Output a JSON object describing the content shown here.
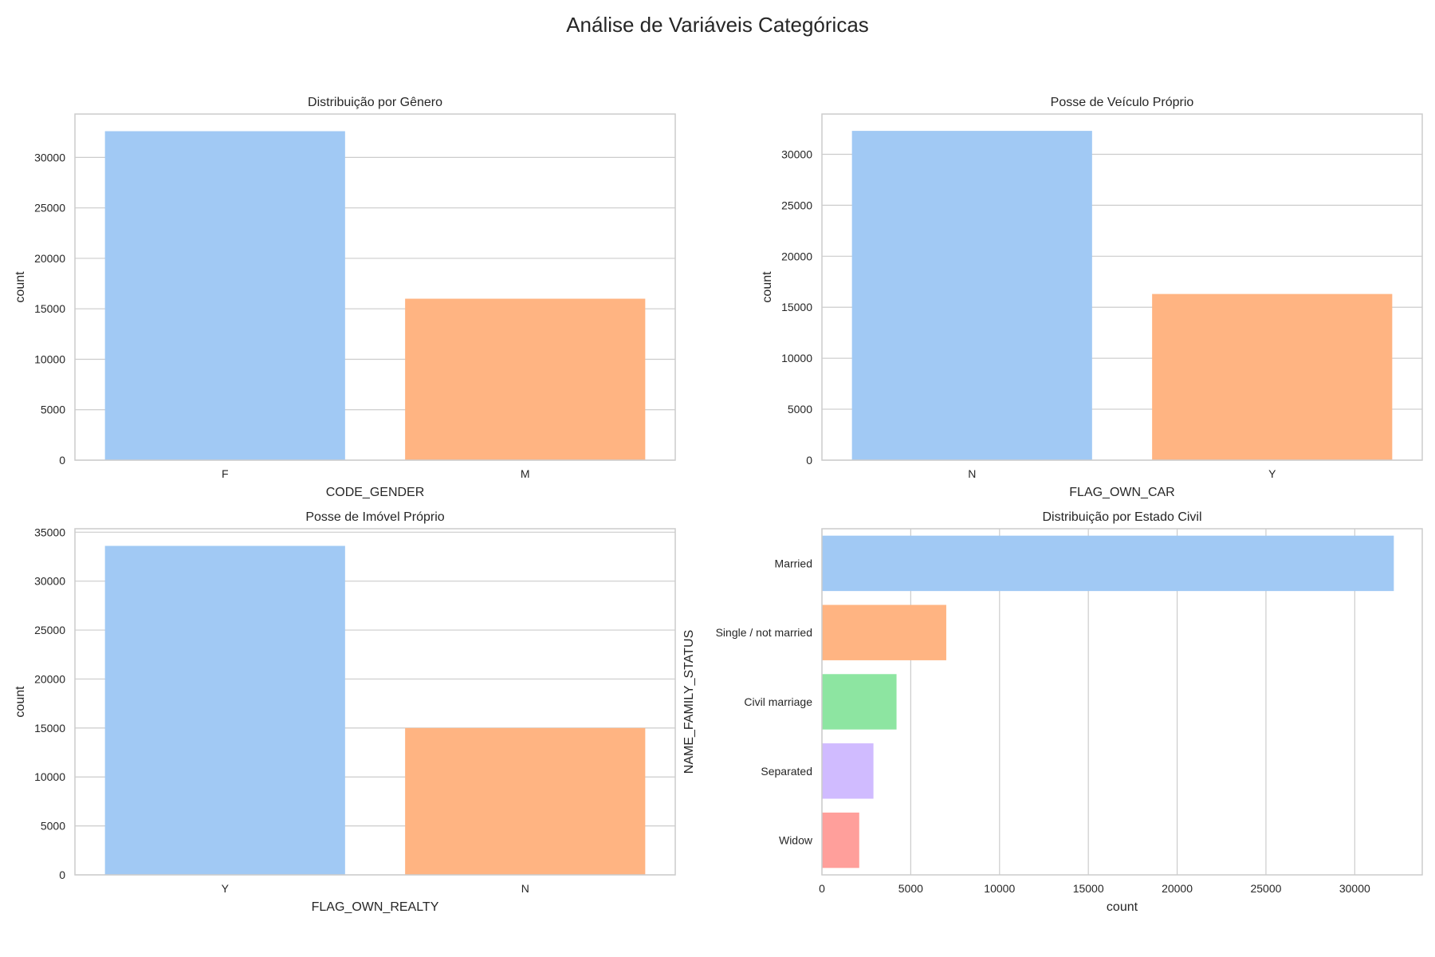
{
  "figure": {
    "title": "Análise de Variáveis Categóricas"
  },
  "chart_data": [
    {
      "type": "bar",
      "orientation": "vertical",
      "title": "Distribuição por Gênero",
      "xlabel": "CODE_GENDER",
      "ylabel": "count",
      "categories": [
        "F",
        "M"
      ],
      "values": [
        32600,
        16000
      ],
      "colors": [
        "#a1c9f4",
        "#ffb482"
      ],
      "ylim": [
        0,
        34300
      ],
      "yticks": [
        0,
        5000,
        10000,
        15000,
        20000,
        25000,
        30000
      ],
      "grid": true,
      "legend": "none"
    },
    {
      "type": "bar",
      "orientation": "vertical",
      "title": "Posse de Veículo Próprio",
      "xlabel": "FLAG_OWN_CAR",
      "ylabel": "count",
      "categories": [
        "N",
        "Y"
      ],
      "values": [
        32300,
        16300
      ],
      "colors": [
        "#a1c9f4",
        "#ffb482"
      ],
      "ylim": [
        0,
        33950
      ],
      "yticks": [
        0,
        5000,
        10000,
        15000,
        20000,
        25000,
        30000
      ],
      "grid": true,
      "legend": "none"
    },
    {
      "type": "bar",
      "orientation": "vertical",
      "title": "Posse de Imóvel Próprio",
      "xlabel": "FLAG_OWN_REALTY",
      "ylabel": "count",
      "categories": [
        "Y",
        "N"
      ],
      "values": [
        33600,
        15000
      ],
      "colors": [
        "#a1c9f4",
        "#ffb482"
      ],
      "ylim": [
        0,
        35350
      ],
      "yticks": [
        0,
        5000,
        10000,
        15000,
        20000,
        25000,
        30000,
        35000
      ],
      "grid": true,
      "legend": "none"
    },
    {
      "type": "bar",
      "orientation": "horizontal",
      "title": "Distribuição por Estado Civil",
      "xlabel": "count",
      "ylabel": "NAME_FAMILY_STATUS",
      "categories": [
        "Married",
        "Single / not married",
        "Civil marriage",
        "Separated",
        "Widow"
      ],
      "values": [
        32200,
        7000,
        4200,
        2900,
        2100
      ],
      "colors": [
        "#a1c9f4",
        "#ffb482",
        "#8de5a1",
        "#d0bbff",
        "#ff9f9b"
      ],
      "xlim": [
        0,
        33800
      ],
      "xticks": [
        0,
        5000,
        10000,
        15000,
        20000,
        25000,
        30000
      ],
      "grid": true,
      "legend": "none"
    }
  ]
}
